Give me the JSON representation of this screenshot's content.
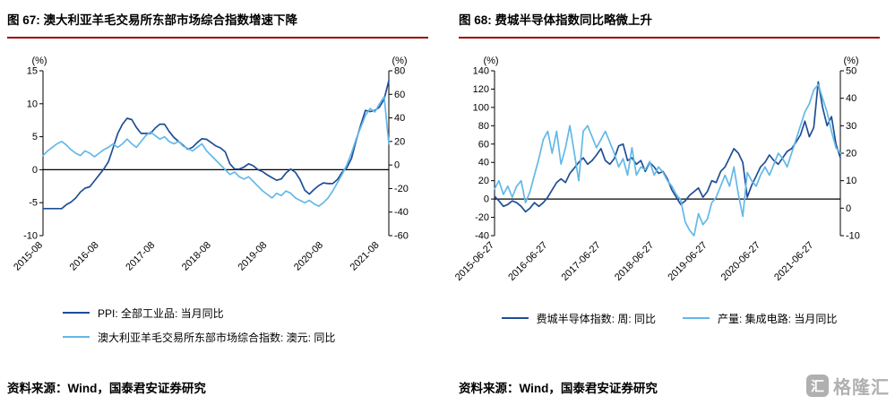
{
  "theme": {
    "accent_red": "#990000",
    "dark_blue": "#1F4E96",
    "light_blue": "#63B8E8",
    "watermark_gray": "#b0b0b0"
  },
  "watermark": {
    "logo_char": "汇",
    "text": "格隆汇"
  },
  "panels": [
    {
      "title": "图 67: 澳大利亚羊毛交易所东部市场综合指数增速下降",
      "source": "资料来源：Wind，国泰君安证券研究"
    },
    {
      "title": "图 68: 费城半导体指数同比略微上升",
      "source": "资料来源：Wind，国泰君安证券研究"
    }
  ],
  "chart_data": [
    {
      "type": "line",
      "title": "图 67: 澳大利亚羊毛交易所东部市场综合指数增速下降",
      "grid": false,
      "legend_position": "bottom",
      "x_unit": "month",
      "x_start": "2015-08",
      "x_tick_labels": [
        "2015-08",
        "2016-08",
        "2017-08",
        "2018-08",
        "2019-08",
        "2020-08",
        "2021-08"
      ],
      "x_tick_indices": [
        0,
        12,
        24,
        36,
        48,
        60,
        72
      ],
      "left_axis": {
        "label": "(%)",
        "min": -10,
        "max": 15,
        "ticks": [
          15,
          10,
          5,
          0,
          -5,
          -10
        ]
      },
      "right_axis": {
        "label": "(%)",
        "min": -60,
        "max": 80,
        "ticks": [
          80,
          60,
          40,
          20,
          0,
          -20,
          -40,
          -60
        ]
      },
      "series": [
        {
          "name": "PPI: 全部工业品: 当月同比",
          "axis": "left",
          "color": "#1F4E96",
          "values": [
            -5.9,
            -5.9,
            -5.9,
            -5.9,
            -5.9,
            -5.3,
            -4.9,
            -4.3,
            -3.4,
            -2.8,
            -2.6,
            -1.7,
            -0.8,
            0.1,
            1.2,
            3.3,
            5.5,
            6.9,
            7.8,
            7.6,
            6.4,
            5.5,
            5.5,
            5.5,
            6.3,
            6.9,
            6.9,
            5.8,
            4.9,
            4.3,
            3.7,
            3.1,
            3.4,
            4.1,
            4.7,
            4.6,
            4.1,
            3.6,
            3.3,
            2.7,
            0.9,
            0.1,
            0.1,
            0.4,
            0.9,
            0.6,
            0.0,
            -0.3,
            -0.8,
            -1.2,
            -1.6,
            -1.4,
            -0.5,
            0.1,
            -0.4,
            -1.5,
            -3.1,
            -3.7,
            -3.0,
            -2.4,
            -2.0,
            -2.1,
            -2.1,
            -1.5,
            -0.4,
            0.3,
            1.7,
            4.4,
            6.8,
            9.0,
            8.8,
            9.0,
            9.5,
            10.7,
            13.5
          ]
        },
        {
          "name": "澳大利亚羊毛交易所东部市场综合指数: 澳元: 同比",
          "axis": "right",
          "color": "#63B8E8",
          "values": [
            8,
            12,
            15,
            18,
            20,
            17,
            13,
            10,
            8,
            12,
            10,
            7,
            10,
            13,
            15,
            18,
            15,
            18,
            22,
            18,
            15,
            20,
            25,
            28,
            25,
            22,
            24,
            20,
            18,
            20,
            16,
            14,
            12,
            15,
            18,
            12,
            8,
            4,
            0,
            -4,
            -8,
            -6,
            -10,
            -12,
            -10,
            -14,
            -18,
            -22,
            -25,
            -28,
            -24,
            -26,
            -22,
            -24,
            -28,
            -30,
            -32,
            -30,
            -33,
            -35,
            -32,
            -28,
            -22,
            -15,
            -8,
            0,
            10,
            22,
            32,
            42,
            48,
            45,
            52,
            58,
            18
          ]
        }
      ]
    },
    {
      "type": "line",
      "title": "图 68: 费城半导体指数同比略微上升",
      "grid": false,
      "legend_position": "bottom",
      "x_unit": "month",
      "x_start": "2015-06-27",
      "x_tick_labels": [
        "2015-06-27",
        "2016-06-27",
        "2017-06-27",
        "2018-06-27",
        "2019-06-27",
        "2020-06-27",
        "2021-06-27"
      ],
      "x_tick_indices": [
        0,
        12,
        24,
        36,
        48,
        60,
        72
      ],
      "left_axis": {
        "label": "(%)",
        "min": -40,
        "max": 140,
        "ticks": [
          140,
          120,
          100,
          80,
          60,
          40,
          20,
          0,
          -20,
          -40
        ]
      },
      "right_axis": {
        "label": "(%)",
        "min": -10,
        "max": 50,
        "ticks": [
          50,
          40,
          30,
          20,
          10,
          0,
          -10
        ]
      },
      "series": [
        {
          "name": "费城半导体指数: 周: 同比",
          "axis": "left",
          "color": "#1F4E96",
          "values": [
            3,
            -2,
            -8,
            -6,
            -2,
            -4,
            -8,
            -14,
            -10,
            -4,
            -8,
            -4,
            2,
            10,
            18,
            22,
            18,
            28,
            34,
            40,
            45,
            38,
            42,
            48,
            55,
            42,
            38,
            44,
            58,
            60,
            42,
            45,
            38,
            42,
            30,
            40,
            35,
            28,
            30,
            22,
            10,
            2,
            -6,
            -2,
            4,
            8,
            12,
            2,
            8,
            20,
            18,
            30,
            35,
            45,
            55,
            50,
            40,
            2,
            15,
            25,
            35,
            40,
            48,
            42,
            38,
            45,
            52,
            55,
            62,
            70,
            85,
            68,
            78,
            128,
            100,
            80,
            90,
            60,
            45
          ]
        },
        {
          "name": "产量: 集成电路: 当月同比",
          "axis": "right",
          "color": "#63B8E8",
          "values": [
            7,
            10,
            5,
            8,
            4,
            8,
            10,
            2,
            6,
            12,
            18,
            25,
            28,
            20,
            28,
            16,
            22,
            30,
            20,
            10,
            28,
            30,
            26,
            22,
            25,
            28,
            24,
            20,
            15,
            18,
            12,
            22,
            12,
            15,
            14,
            17,
            12,
            15,
            13,
            10,
            8,
            5,
            3,
            -5,
            -8,
            -10,
            -2,
            -6,
            -4,
            2,
            4,
            8,
            12,
            8,
            15,
            5,
            -3,
            13,
            10,
            8,
            12,
            15,
            12,
            16,
            20,
            18,
            15,
            20,
            25,
            30,
            35,
            38,
            43,
            45,
            40,
            35,
            28,
            22,
            20
          ]
        }
      ]
    }
  ]
}
